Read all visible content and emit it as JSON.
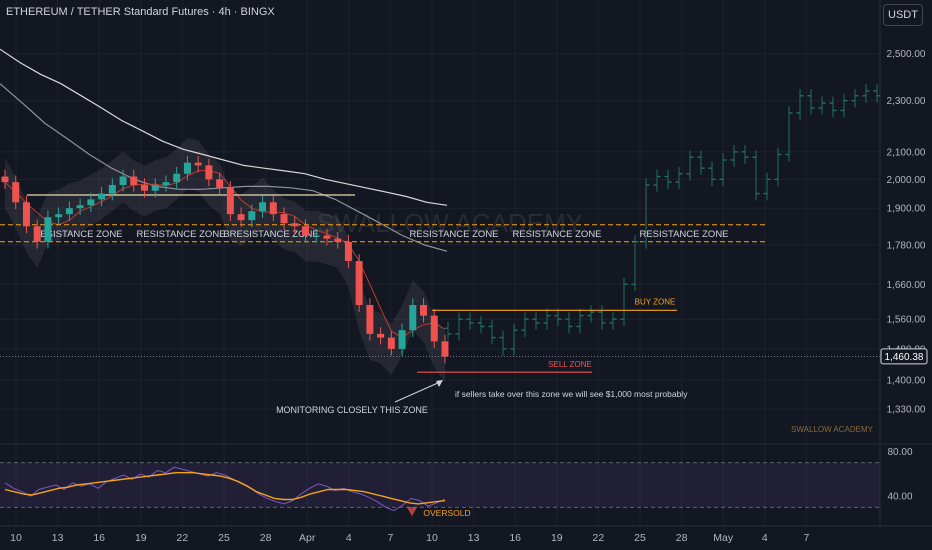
{
  "header": {
    "title": "ETHEREUM / TETHER Standard Futures · 4h · BINGX",
    "quote_currency": "USDT"
  },
  "colors": {
    "background": "#131722",
    "bull": "#26a69a",
    "bear": "#ef5350",
    "projection": "#1f6f63",
    "resistance": "#f7a21b",
    "buy_zone": "#f7a21b",
    "sell_zone": "#ef5350",
    "rsi_line": "#7e57c2",
    "rsi_ma": "#f7a21b",
    "annotation_text": "#d1d4dc"
  },
  "chart_data": [
    {
      "type": "candlestick",
      "title": "ETHEREUM / TETHER Standard Futures · 4h · BINGX",
      "ylim": [
        1250,
        2750
      ],
      "y_ticks": [
        "2,500.00",
        "2,300.00",
        "2,100.00",
        "2,000.00",
        "1,900.00",
        "1,780.00",
        "1,660.00",
        "1,560.00",
        "1,480.00",
        "1,400.00",
        "1,330.00"
      ],
      "x_ticks": [
        "10",
        "13",
        "16",
        "19",
        "22",
        "25",
        "28",
        "Apr",
        "4",
        "7",
        "10",
        "13",
        "16",
        "19",
        "22",
        "25",
        "28",
        "May",
        "4",
        "7"
      ],
      "last_price": "1,460.38",
      "historical_closes": [
        1990,
        1920,
        1840,
        1790,
        1870,
        1880,
        1900,
        1910,
        1930,
        1950,
        1980,
        2010,
        1980,
        1960,
        1980,
        1990,
        2020,
        2060,
        2050,
        2000,
        1970,
        1880,
        1860,
        1890,
        1920,
        1880,
        1850,
        1840,
        1810,
        1810,
        1800,
        1790,
        1730,
        1600,
        1520,
        1510,
        1480,
        1530,
        1600,
        1570,
        1500,
        1460
      ],
      "projection_closes": [
        1520,
        1560,
        1550,
        1540,
        1510,
        1480,
        1530,
        1560,
        1550,
        1570,
        1560,
        1540,
        1570,
        1580,
        1550,
        1560,
        1660,
        1790,
        1980,
        2010,
        1990,
        2020,
        2080,
        2040,
        2000,
        2070,
        2100,
        2080,
        1950,
        2000,
        2090,
        2250,
        2320,
        2270,
        2290,
        2260,
        2300,
        2320,
        2340,
        2320
      ],
      "moving_averages": {
        "ma_white": [
          2520,
          2460,
          2410,
          2370,
          2320,
          2270,
          2220,
          2180,
          2140,
          2110,
          2090,
          2070,
          2050,
          2040,
          2030,
          2020,
          2000,
          1985,
          1970,
          1955,
          1940,
          1920,
          1910
        ],
        "ma_grey": [
          2370,
          2290,
          2210,
          2150,
          2090,
          2040,
          2000,
          1975,
          1965,
          1965,
          1970,
          1975,
          1975,
          1970,
          1960,
          1930,
          1890,
          1850,
          1810,
          1780,
          1760
        ]
      },
      "zones": {
        "resistance_upper": 1845,
        "resistance_lower": 1790,
        "resistance_labels": [
          "RESISTANCE ZONE",
          "RESISTANCE ZONE",
          "BRESISTANCE ZONE",
          "RESISTANCE ZONE",
          "RESISTANCE ZONE",
          "RESISTANCE ZONE"
        ],
        "box_line": 1945,
        "buy_zone": 1585,
        "buy_zone_label": "BUY ZONE",
        "sell_zone": 1420,
        "sell_zone_label": "SELL ZONE"
      },
      "annotations": {
        "monitoring": "MONITORING CLOSELY THIS ZONE",
        "sellers_note": "if sellers take over this zone we will see $1,000 most probably",
        "watermark": "SWALLOW ACADEMY",
        "brand": "SWALLOW ACADEMY"
      }
    },
    {
      "type": "line",
      "title": "",
      "ylim": [
        15,
        85
      ],
      "band": [
        30,
        70
      ],
      "y_ticks": [
        "80.00",
        "40.00"
      ],
      "series": [
        {
          "values": [
            52,
            47,
            44,
            40,
            46,
            48,
            50,
            46,
            52,
            49,
            51,
            47,
            53,
            56,
            59,
            55,
            60,
            57,
            63,
            61,
            66,
            64,
            62,
            60,
            58,
            61,
            59,
            55,
            51,
            47,
            42,
            38,
            35,
            33,
            36,
            42,
            47,
            51,
            49,
            45,
            47,
            44,
            42,
            39,
            35,
            30,
            27,
            32,
            38,
            36,
            31,
            34,
            37
          ]
        },
        {
          "values": [
            46,
            44,
            42,
            41,
            43,
            45,
            47,
            48,
            50,
            51,
            52,
            53,
            54,
            55,
            56,
            57,
            58,
            59,
            60,
            61,
            61,
            61,
            60,
            59,
            58,
            56,
            53,
            49,
            44,
            41,
            38,
            37,
            37,
            39,
            42,
            44,
            46,
            46,
            46,
            45,
            44,
            42,
            40,
            38,
            36,
            34,
            33,
            34,
            35,
            36
          ]
        }
      ],
      "annotations": {
        "oversold": "OVERSOLD"
      }
    }
  ]
}
